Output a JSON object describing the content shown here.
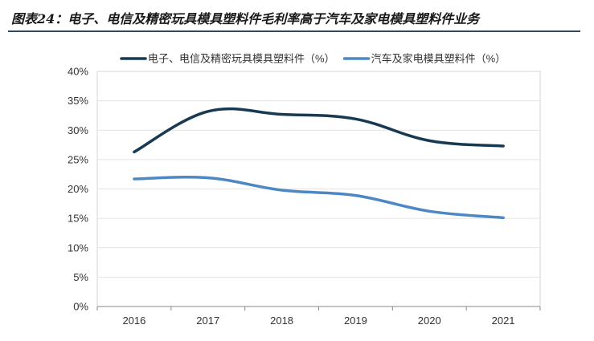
{
  "figure_title": "图表24：电子、电信及精密玩具模具塑料件毛利率高于汽车及家电模具塑料件业务",
  "chart_data": {
    "type": "line",
    "x": [
      "2016",
      "2017",
      "2018",
      "2019",
      "2020",
      "2021"
    ],
    "ylim": [
      0,
      40
    ],
    "yticks": [
      "0%",
      "5%",
      "10%",
      "15%",
      "20%",
      "25%",
      "30%",
      "35%",
      "40%"
    ],
    "grid": true,
    "legend_position": "top",
    "series": [
      {
        "name": "电子、电信及精密玩具模具塑料件（%）",
        "color": "#173a52",
        "values": [
          26.3,
          33.2,
          32.7,
          31.9,
          28.2,
          27.3
        ]
      },
      {
        "name": "汽车及家电模具塑料件（%）",
        "color": "#4d87c4",
        "values": [
          21.7,
          21.9,
          19.8,
          18.9,
          16.2,
          15.1
        ]
      }
    ]
  }
}
